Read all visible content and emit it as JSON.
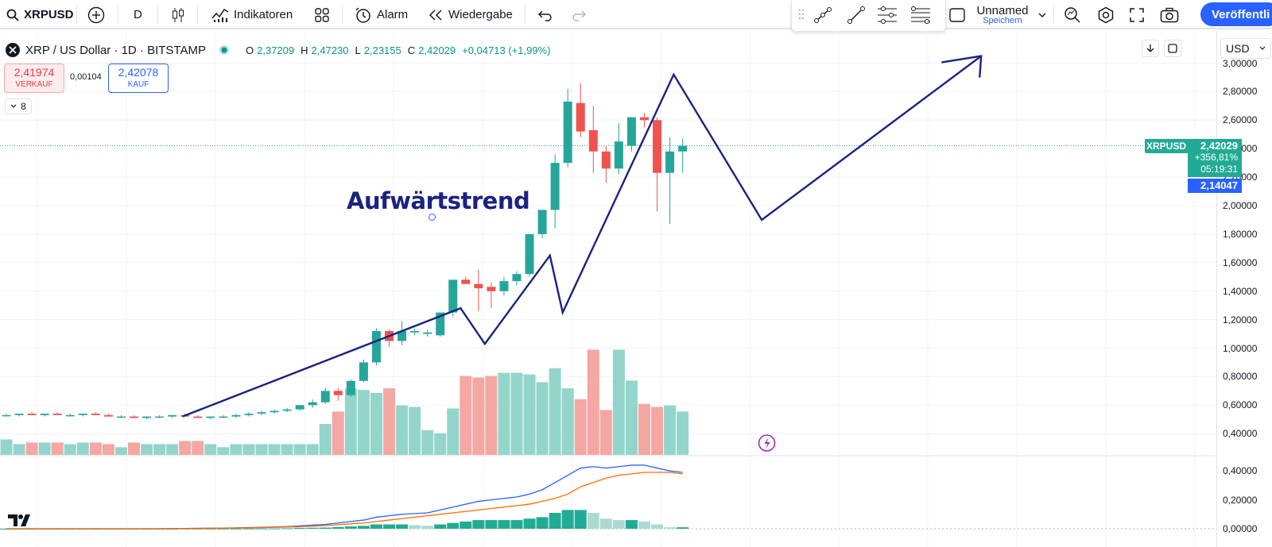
{
  "toolbar": {
    "symbol": "XRPUSD",
    "interval": "D",
    "indicators": "Indikatoren",
    "alert": "Alarm",
    "replay": "Wiedergabe",
    "layout_name": "Unnamed",
    "layout_sub": "Speichern",
    "publish": "Veröffentli"
  },
  "legend": {
    "title": "XRP / US Dollar · 1D · BITSTAMP",
    "o_label": "O",
    "o": "2,37209",
    "h_label": "H",
    "h": "2,47230",
    "l_label": "L",
    "l": "2,23155",
    "c_label": "C",
    "c": "2,42029",
    "change": "+0,04713 (+1,99%)",
    "sell_price": "2,41974",
    "sell_label": "VERKAUF",
    "spread": "0,00104",
    "buy_price": "2,42078",
    "buy_label": "KAUF",
    "indicator_count": "8"
  },
  "annotation": {
    "text": "Aufwärtstrend"
  },
  "price_axis": {
    "currency": "USD",
    "ticks": [
      "3,00000",
      "2,80000",
      "2,60000",
      "2,40000",
      "2,20000",
      "2,00000",
      "1,80000",
      "1,60000",
      "1,40000",
      "1,20000",
      "1,00000",
      "0,80000",
      "0,60000",
      "0,40000"
    ],
    "symbol_tag": "XRPUSD",
    "last_price": "2,42029",
    "last_change": "+356,81%",
    "countdown": "05:19:31",
    "cursor_price": "2,14047",
    "macd_ticks": [
      "0,40000",
      "0,20000",
      "0,00000"
    ]
  },
  "colors": {
    "up": "#26a69a",
    "down": "#ef5350",
    "trendline": "#1a237e",
    "accent": "#2962ff"
  },
  "chart_data": {
    "type": "candlestick",
    "note_y": "price USD",
    "candles": [
      [
        0.53,
        0.54,
        0.52,
        0.53
      ],
      [
        0.53,
        0.54,
        0.52,
        0.54
      ],
      [
        0.54,
        0.55,
        0.53,
        0.53
      ],
      [
        0.53,
        0.54,
        0.52,
        0.54
      ],
      [
        0.54,
        0.55,
        0.53,
        0.53
      ],
      [
        0.53,
        0.54,
        0.52,
        0.53
      ],
      [
        0.53,
        0.54,
        0.52,
        0.54
      ],
      [
        0.54,
        0.55,
        0.53,
        0.53
      ],
      [
        0.53,
        0.54,
        0.52,
        0.52
      ],
      [
        0.52,
        0.53,
        0.51,
        0.52
      ],
      [
        0.52,
        0.53,
        0.51,
        0.51
      ],
      [
        0.51,
        0.52,
        0.5,
        0.52
      ],
      [
        0.52,
        0.53,
        0.51,
        0.52
      ],
      [
        0.52,
        0.53,
        0.51,
        0.53
      ],
      [
        0.53,
        0.54,
        0.52,
        0.52
      ],
      [
        0.52,
        0.53,
        0.51,
        0.51
      ],
      [
        0.51,
        0.52,
        0.5,
        0.52
      ],
      [
        0.52,
        0.53,
        0.51,
        0.52
      ],
      [
        0.52,
        0.54,
        0.51,
        0.53
      ],
      [
        0.53,
        0.55,
        0.52,
        0.54
      ],
      [
        0.54,
        0.56,
        0.53,
        0.55
      ],
      [
        0.55,
        0.57,
        0.54,
        0.56
      ],
      [
        0.56,
        0.58,
        0.55,
        0.57
      ],
      [
        0.57,
        0.6,
        0.56,
        0.6
      ],
      [
        0.6,
        0.64,
        0.58,
        0.62
      ],
      [
        0.62,
        0.72,
        0.61,
        0.7
      ],
      [
        0.7,
        0.72,
        0.63,
        0.67
      ],
      [
        0.67,
        0.78,
        0.66,
        0.77
      ],
      [
        0.77,
        0.92,
        0.76,
        0.9
      ],
      [
        0.9,
        1.14,
        0.88,
        1.12
      ],
      [
        1.12,
        1.13,
        1.01,
        1.05
      ],
      [
        1.05,
        1.19,
        1.02,
        1.12
      ],
      [
        1.11,
        1.14,
        1.09,
        1.12
      ],
      [
        1.1,
        1.13,
        1.08,
        1.11
      ],
      [
        1.09,
        1.24,
        1.08,
        1.25
      ],
      [
        1.25,
        1.48,
        1.22,
        1.48
      ],
      [
        1.48,
        1.5,
        1.45,
        1.45
      ],
      [
        1.45,
        1.55,
        1.26,
        1.42
      ],
      [
        1.43,
        1.46,
        1.28,
        1.4
      ],
      [
        1.4,
        1.5,
        1.37,
        1.47
      ],
      [
        1.47,
        1.54,
        1.44,
        1.52
      ],
      [
        1.52,
        1.8,
        1.5,
        1.8
      ],
      [
        1.8,
        1.97,
        1.77,
        1.97
      ],
      [
        1.97,
        2.36,
        1.84,
        2.3
      ],
      [
        2.3,
        2.82,
        2.27,
        2.73
      ],
      [
        2.72,
        2.86,
        2.48,
        2.52
      ],
      [
        2.53,
        2.7,
        2.23,
        2.38
      ],
      [
        2.38,
        2.42,
        2.16,
        2.26
      ],
      [
        2.26,
        2.58,
        2.22,
        2.45
      ],
      [
        2.42,
        2.62,
        2.38,
        2.62
      ],
      [
        2.62,
        2.65,
        2.55,
        2.6
      ],
      [
        2.6,
        2.62,
        1.96,
        2.23
      ],
      [
        2.23,
        2.48,
        1.87,
        2.38
      ],
      [
        2.38,
        2.47,
        2.23,
        2.42
      ]
    ],
    "volume_pct": [
      10,
      7,
      8,
      8,
      8,
      7,
      8,
      8,
      7,
      5,
      8,
      7,
      7,
      7,
      9,
      9,
      7,
      5,
      7,
      7,
      7,
      7,
      7,
      7,
      7,
      20,
      28,
      43,
      42,
      40,
      43,
      32,
      31,
      16,
      14,
      30,
      51,
      50,
      51,
      53,
      53,
      52,
      47,
      56,
      43,
      36,
      68,
      29,
      68,
      48,
      33,
      31,
      32,
      28
    ],
    "macd": [
      0,
      0,
      0,
      0,
      0,
      0,
      0,
      0,
      0,
      0,
      0,
      0,
      0,
      0.001,
      0.002,
      0.003,
      0.004,
      0.005,
      0.006,
      0.008,
      0.01,
      0.012,
      0.015,
      0.02,
      0.025,
      0.03,
      0.04,
      0.05,
      0.06,
      0.08,
      0.09,
      0.1,
      0.105,
      0.11,
      0.13,
      0.15,
      0.17,
      0.19,
      0.2,
      0.21,
      0.22,
      0.24,
      0.27,
      0.32,
      0.37,
      0.42,
      0.43,
      0.42,
      0.43,
      0.44,
      0.44,
      0.42,
      0.4,
      0.39
    ],
    "signal": [
      0,
      0,
      0,
      0,
      0,
      0,
      0,
      0,
      0,
      0,
      0,
      0,
      0,
      0.001,
      0.001,
      0.002,
      0.003,
      0.004,
      0.005,
      0.006,
      0.008,
      0.01,
      0.012,
      0.014,
      0.018,
      0.022,
      0.028,
      0.034,
      0.04,
      0.05,
      0.06,
      0.07,
      0.08,
      0.09,
      0.1,
      0.11,
      0.12,
      0.13,
      0.14,
      0.15,
      0.16,
      0.17,
      0.19,
      0.21,
      0.24,
      0.29,
      0.32,
      0.35,
      0.37,
      0.38,
      0.39,
      0.39,
      0.39,
      0.38
    ]
  }
}
